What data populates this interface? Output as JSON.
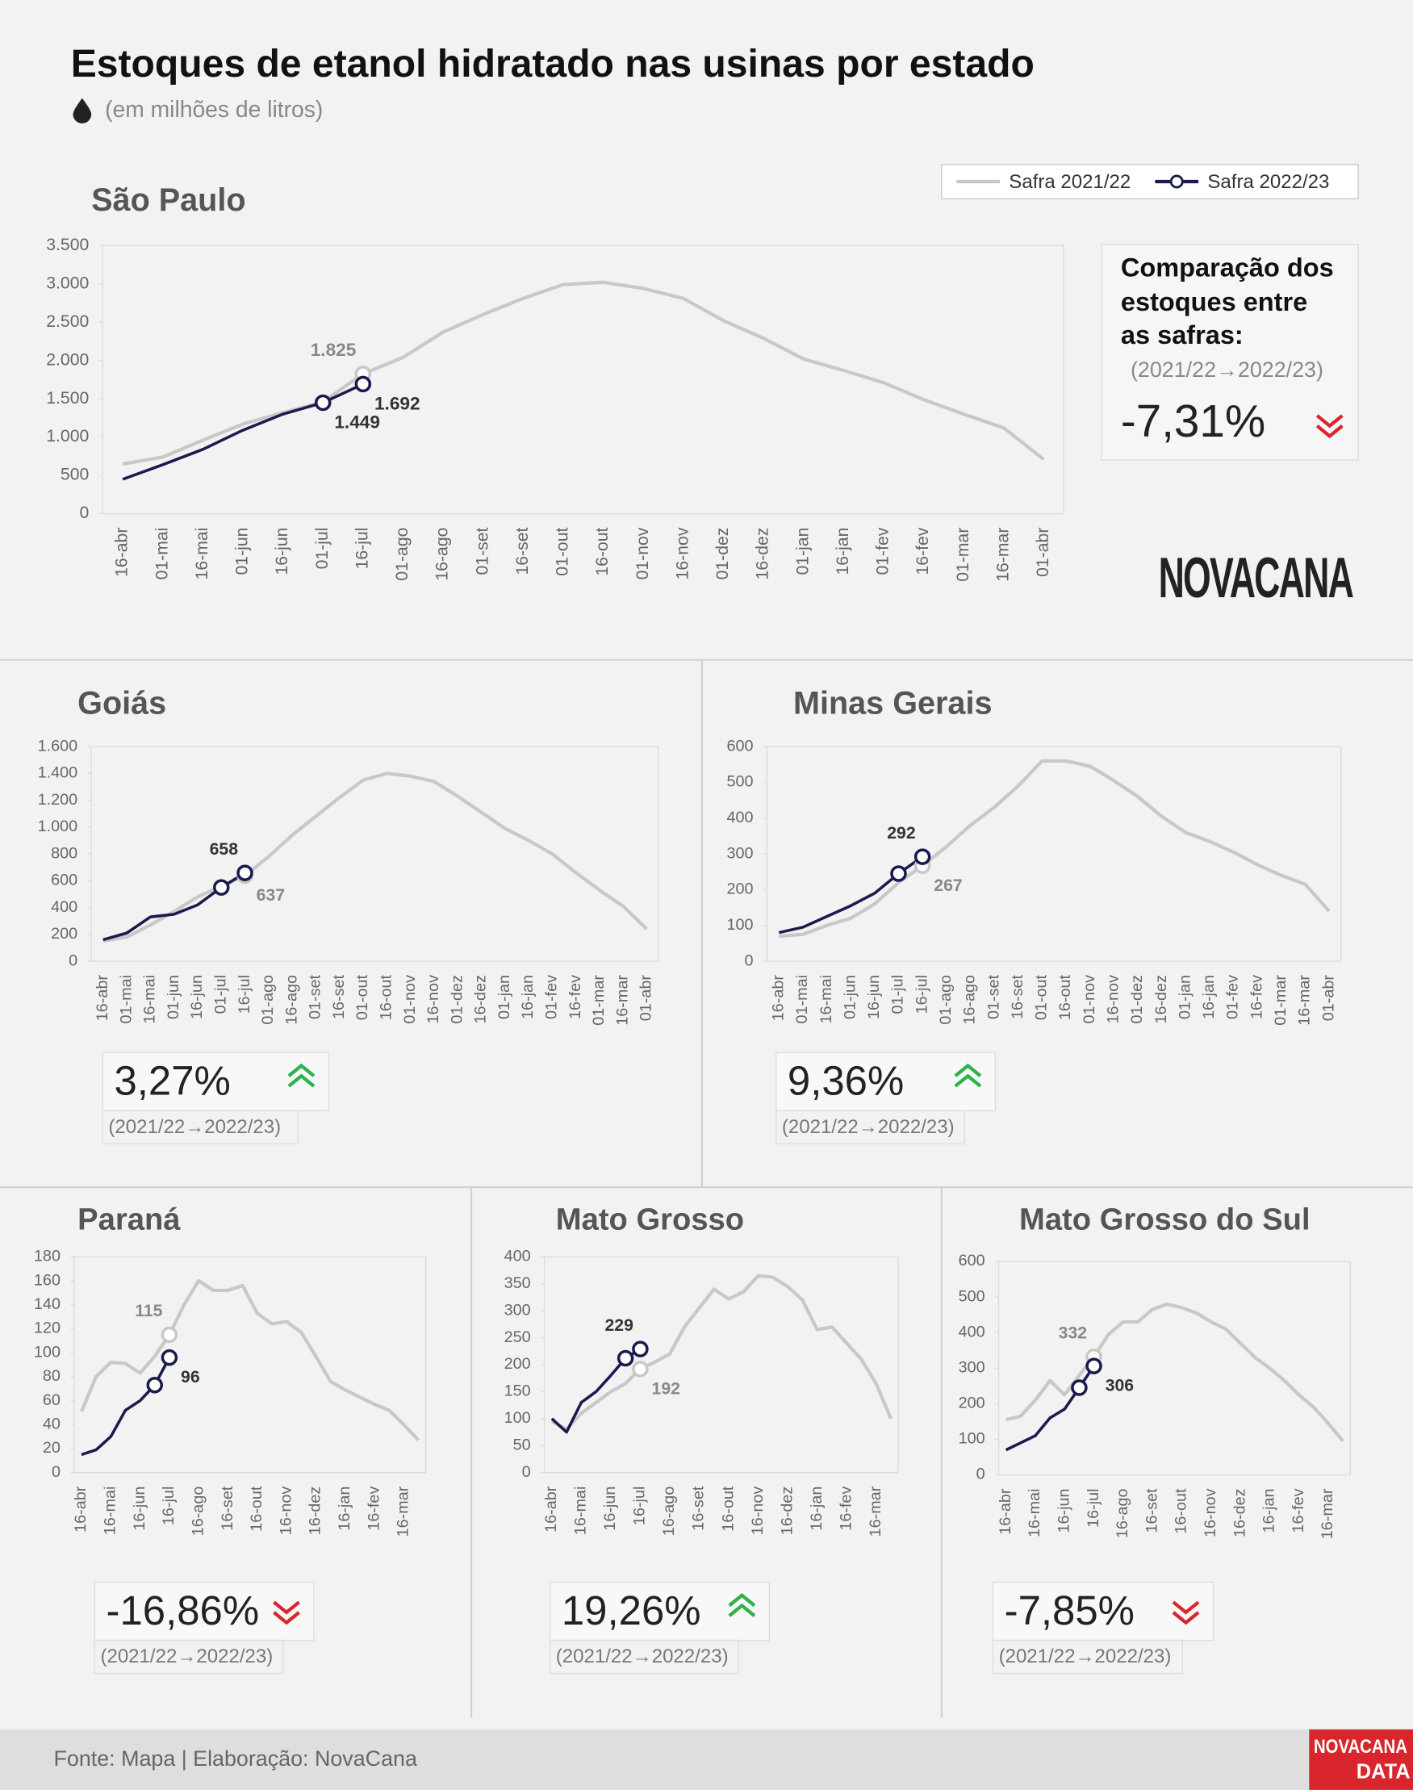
{
  "title": "Estoques de etanol hidratado nas usinas por estado",
  "subtitle": "(em milhões de litros)",
  "comparison_title": [
    "Comparação dos",
    "estoques entre",
    "as safras:"
  ],
  "logo": "NOVACANA",
  "source": "Fonte: Mapa | Elaboração: NovaCana",
  "footer_logo": [
    "NOVACANA",
    "DATA"
  ],
  "chart_data": [
    {
      "type": "line",
      "title": "São Paulo",
      "categories": [
        "16-abr",
        "01-mai",
        "16-mai",
        "01-jun",
        "16-jun",
        "01-jul",
        "16-jul",
        "01-ago",
        "16-ago",
        "01-set",
        "16-set",
        "01-out",
        "16-out",
        "01-nov",
        "16-nov",
        "01-dez",
        "16-dez",
        "01-jan",
        "16-jan",
        "01-fev",
        "16-fev",
        "01-mar",
        "16-mar",
        "01-abr"
      ],
      "series": [
        {
          "name": "Safra 2021/22",
          "color": "#c8c8c8",
          "values": [
            650,
            740,
            960,
            1170,
            1320,
            1460,
            1825,
            2040,
            2370,
            2600,
            2810,
            2990,
            3020,
            2940,
            2810,
            2520,
            2290,
            2020,
            1870,
            1710,
            1490,
            1300,
            1120,
            710
          ],
          "value_labels": [
            null,
            null,
            null,
            null,
            null,
            null,
            "1.825",
            null,
            null,
            null,
            null,
            null,
            null,
            null,
            null,
            null,
            null,
            null,
            null,
            null,
            null,
            null,
            null,
            null
          ]
        },
        {
          "name": "Safra 2022/23",
          "color": "#1a1a4e",
          "values": [
            450,
            640,
            840,
            1090,
            1300,
            1449,
            1692,
            null,
            null,
            null,
            null,
            null,
            null,
            null,
            null,
            null,
            null,
            null,
            null,
            null,
            null,
            null,
            null,
            null
          ],
          "value_labels": [
            null,
            null,
            null,
            null,
            null,
            "1.449",
            "1.692",
            null,
            null,
            null,
            null,
            null,
            null,
            null,
            null,
            null,
            null,
            null,
            null,
            null,
            null,
            null,
            null,
            null
          ]
        }
      ],
      "ylim": [
        0,
        3500
      ],
      "yticks": [
        0,
        500,
        {
          "value": 1000,
          "label": "1.000"
        },
        {
          "value": 1500,
          "label": "1.500"
        },
        {
          "value": 2000,
          "label": "2.000"
        },
        {
          "value": 2500,
          "label": "2.500"
        },
        {
          "value": 3000,
          "label": "3.000"
        },
        {
          "value": 3500,
          "label": "3.500"
        }
      ],
      "legend": "top-right",
      "change": "-7,31%",
      "trend": "down",
      "period": "(2021/22→2022/23)"
    },
    {
      "type": "line",
      "title": "Goiás",
      "categories": [
        "16-abr",
        "01-mai",
        "16-mai",
        "01-jun",
        "16-jun",
        "01-jul",
        "16-jul",
        "01-ago",
        "16-ago",
        "01-set",
        "16-set",
        "01-out",
        "16-out",
        "01-nov",
        "16-nov",
        "01-dez",
        "16-dez",
        "01-jan",
        "16-jan",
        "01-fev",
        "16-fev",
        "01-mar",
        "16-mar",
        "01-abr"
      ],
      "series": [
        {
          "color": "#c8c8c8",
          "values": [
            150,
            180,
            270,
            370,
            480,
            560,
            637,
            780,
            940,
            1080,
            1220,
            1350,
            1400,
            1380,
            1340,
            1230,
            1110,
            990,
            900,
            800,
            660,
            530,
            410,
            240
          ],
          "value_labels": [
            null,
            null,
            null,
            null,
            null,
            null,
            "637",
            null,
            null,
            null,
            null,
            null,
            null,
            null,
            null,
            null,
            null,
            null,
            null,
            null,
            null,
            null,
            null,
            null
          ]
        },
        {
          "color": "#1a1a4e",
          "values": [
            160,
            210,
            330,
            350,
            420,
            550,
            658,
            null,
            null,
            null,
            null,
            null,
            null,
            null,
            null,
            null,
            null,
            null,
            null,
            null,
            null,
            null,
            null,
            null
          ],
          "value_labels": [
            null,
            null,
            null,
            null,
            null,
            null,
            "658",
            null,
            null,
            null,
            null,
            null,
            null,
            null,
            null,
            null,
            null,
            null,
            null,
            null,
            null,
            null,
            null,
            null
          ]
        }
      ],
      "ylim": [
        0,
        1600
      ],
      "yticks": [
        0,
        200,
        400,
        600,
        800,
        {
          "value": 1000,
          "label": "1.000"
        },
        {
          "value": 1200,
          "label": "1.200"
        },
        {
          "value": 1400,
          "label": "1.400"
        },
        {
          "value": 1600,
          "label": "1.600"
        }
      ],
      "change": "3,27%",
      "trend": "up",
      "period": "(2021/22→2022/23)"
    },
    {
      "type": "line",
      "title": "Minas Gerais",
      "categories": [
        "16-abr",
        "01-mai",
        "16-mai",
        "01-jun",
        "16-jun",
        "01-jul",
        "16-jul",
        "01-ago",
        "16-ago",
        "01-set",
        "16-set",
        "01-out",
        "16-out",
        "01-nov",
        "16-nov",
        "01-dez",
        "16-dez",
        "01-jan",
        "16-jan",
        "01-fev",
        "16-fev",
        "01-mar",
        "16-mar",
        "01-abr"
      ],
      "series": [
        {
          "color": "#c8c8c8",
          "values": [
            70,
            75,
            100,
            120,
            160,
            220,
            267,
            320,
            380,
            430,
            490,
            560,
            560,
            545,
            505,
            460,
            405,
            360,
            335,
            305,
            270,
            240,
            215,
            140
          ],
          "value_labels": [
            null,
            null,
            null,
            null,
            null,
            null,
            "267",
            null,
            null,
            null,
            null,
            null,
            null,
            null,
            null,
            null,
            null,
            null,
            null,
            null,
            null,
            null,
            null,
            null
          ]
        },
        {
          "color": "#1a1a4e",
          "values": [
            80,
            95,
            125,
            155,
            190,
            245,
            292,
            null,
            null,
            null,
            null,
            null,
            null,
            null,
            null,
            null,
            null,
            null,
            null,
            null,
            null,
            null,
            null,
            null
          ],
          "value_labels": [
            null,
            null,
            null,
            null,
            null,
            null,
            "292",
            null,
            null,
            null,
            null,
            null,
            null,
            null,
            null,
            null,
            null,
            null,
            null,
            null,
            null,
            null,
            null,
            null
          ]
        }
      ],
      "ylim": [
        0,
        600
      ],
      "yticks": [
        0,
        100,
        200,
        300,
        400,
        500,
        600
      ],
      "change": "9,36%",
      "trend": "up",
      "period": "(2021/22→2022/23)"
    },
    {
      "type": "line",
      "title": "Paraná",
      "categories": [
        "16-abr",
        null,
        "16-mai",
        null,
        "16-jun",
        null,
        "16-jul",
        null,
        "16-ago",
        null,
        "16-set",
        null,
        "16-out",
        null,
        "16-nov",
        null,
        "16-dez",
        null,
        "16-jan",
        null,
        "16-fev",
        null,
        "16-mar",
        null
      ],
      "series": [
        {
          "color": "#c8c8c8",
          "values": [
            51,
            80,
            92,
            91,
            83,
            97,
            115,
            140,
            160,
            152,
            152,
            156,
            133,
            124,
            126,
            117,
            97,
            76,
            69,
            63,
            57,
            52,
            40,
            27
          ],
          "value_labels": [
            null,
            null,
            null,
            null,
            null,
            null,
            "115",
            null,
            null,
            null,
            null,
            null,
            null,
            null,
            null,
            null,
            null,
            null,
            null,
            null,
            null,
            null,
            null,
            null
          ]
        },
        {
          "color": "#1a1a4e",
          "values": [
            15,
            19,
            30,
            52,
            60,
            73,
            96,
            null,
            null,
            null,
            null,
            null,
            null,
            null,
            null,
            null,
            null,
            null,
            null,
            null,
            null,
            null,
            null,
            null
          ],
          "value_labels": [
            null,
            null,
            null,
            null,
            null,
            null,
            "96",
            null,
            null,
            null,
            null,
            null,
            null,
            null,
            null,
            null,
            null,
            null,
            null,
            null,
            null,
            null,
            null,
            null
          ]
        }
      ],
      "ylim": [
        0,
        180
      ],
      "yticks": [
        0,
        20,
        40,
        60,
        80,
        100,
        120,
        140,
        160,
        180
      ],
      "change": "-16,86%",
      "trend": "down",
      "period": "(2021/22→2022/23)"
    },
    {
      "type": "line",
      "title": "Mato Grosso",
      "categories": [
        "16-abr",
        null,
        "16-mai",
        null,
        "16-jun",
        null,
        "16-jul",
        null,
        "16-ago",
        null,
        "16-set",
        null,
        "16-out",
        null,
        "16-nov",
        null,
        "16-dez",
        null,
        "16-jan",
        null,
        "16-fev",
        null,
        "16-mar",
        null
      ],
      "series": [
        {
          "color": "#c8c8c8",
          "values": [
            95,
            80,
            110,
            130,
            150,
            165,
            192,
            205,
            220,
            270,
            305,
            340,
            322,
            335,
            365,
            362,
            345,
            320,
            265,
            270,
            240,
            210,
            165,
            100
          ],
          "value_labels": [
            null,
            null,
            null,
            null,
            null,
            null,
            "192",
            null,
            null,
            null,
            null,
            null,
            null,
            null,
            null,
            null,
            null,
            null,
            null,
            null,
            null,
            null,
            null,
            null
          ]
        },
        {
          "color": "#1a1a4e",
          "values": [
            100,
            75,
            130,
            150,
            180,
            212,
            229,
            null,
            null,
            null,
            null,
            null,
            null,
            null,
            null,
            null,
            null,
            null,
            null,
            null,
            null,
            null,
            null,
            null
          ],
          "value_labels": [
            null,
            null,
            null,
            null,
            null,
            null,
            "229",
            null,
            null,
            null,
            null,
            null,
            null,
            null,
            null,
            null,
            null,
            null,
            null,
            null,
            null,
            null,
            null,
            null
          ]
        }
      ],
      "ylim": [
        0,
        400
      ],
      "yticks": [
        0,
        50,
        100,
        150,
        200,
        250,
        300,
        350,
        400
      ],
      "change": "19,26%",
      "trend": "up",
      "period": "(2021/22→2022/23)"
    },
    {
      "type": "line",
      "title": "Mato Grosso do Sul",
      "categories": [
        "16-abr",
        null,
        "16-mai",
        null,
        "16-jun",
        null,
        "16-jul",
        null,
        "16-ago",
        null,
        "16-set",
        null,
        "16-out",
        null,
        "16-nov",
        null,
        "16-dez",
        null,
        "16-jan",
        null,
        "16-fev",
        null,
        "16-mar",
        null
      ],
      "series": [
        {
          "color": "#c8c8c8",
          "values": [
            155,
            165,
            210,
            265,
            225,
            280,
            332,
            395,
            430,
            430,
            465,
            480,
            470,
            455,
            430,
            410,
            370,
            330,
            300,
            265,
            225,
            190,
            145,
            95
          ],
          "value_labels": [
            null,
            null,
            null,
            null,
            null,
            null,
            "332",
            null,
            null,
            null,
            null,
            null,
            null,
            null,
            null,
            null,
            null,
            null,
            null,
            null,
            null,
            null,
            null,
            null
          ]
        },
        {
          "color": "#1a1a4e",
          "values": [
            70,
            90,
            110,
            160,
            185,
            245,
            306,
            null,
            null,
            null,
            null,
            null,
            null,
            null,
            null,
            null,
            null,
            null,
            null,
            null,
            null,
            null,
            null,
            null
          ],
          "value_labels": [
            null,
            null,
            null,
            null,
            null,
            null,
            "306",
            null,
            null,
            null,
            null,
            null,
            null,
            null,
            null,
            null,
            null,
            null,
            null,
            null,
            null,
            null,
            null,
            null
          ]
        }
      ],
      "ylim": [
        0,
        600
      ],
      "yticks": [
        0,
        100,
        200,
        300,
        400,
        500,
        600
      ],
      "change": "-7,85%",
      "trend": "down",
      "period": "(2021/22→2022/23)"
    }
  ]
}
